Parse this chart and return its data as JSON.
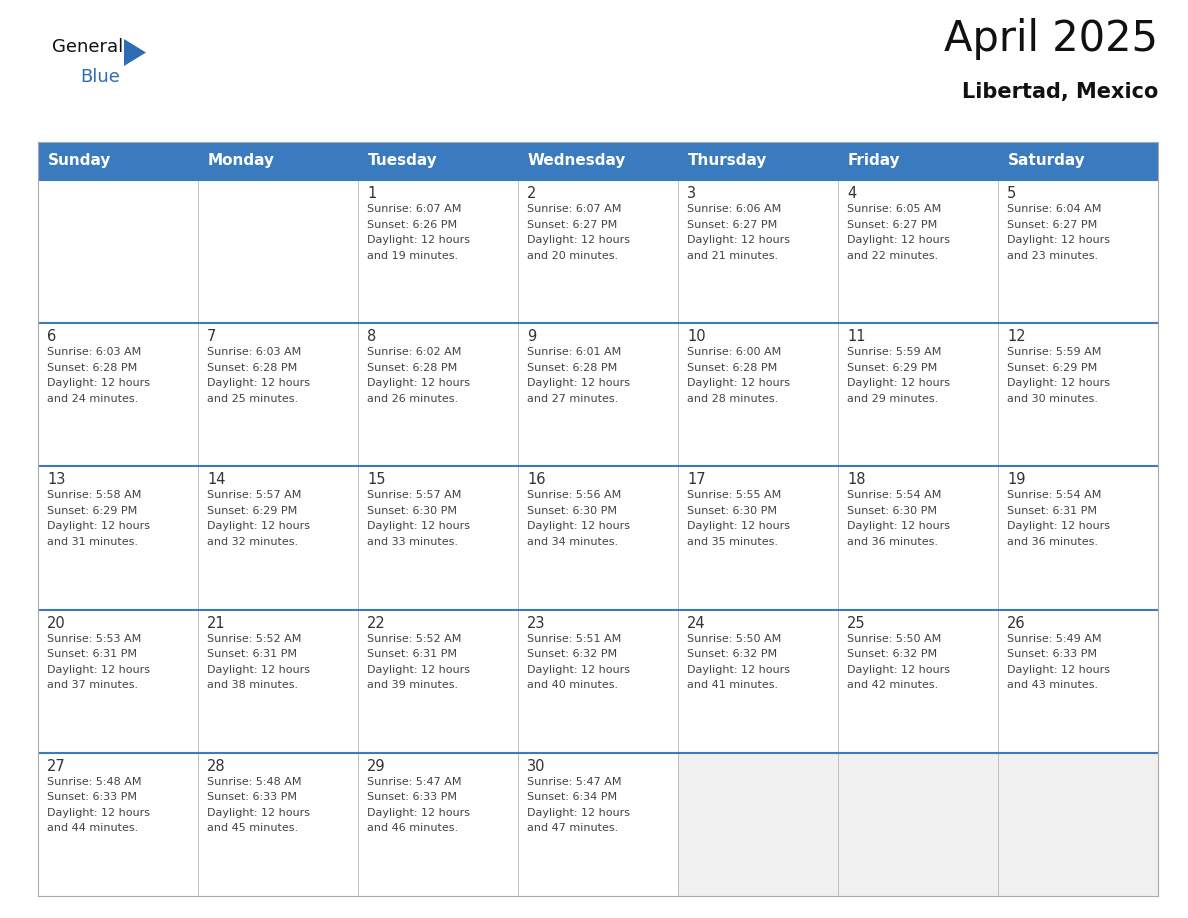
{
  "title": "April 2025",
  "subtitle": "Libertad, Mexico",
  "header_bg": "#3a7bbf",
  "header_text": "#FFFFFF",
  "weekdays": [
    "Sunday",
    "Monday",
    "Tuesday",
    "Wednesday",
    "Thursday",
    "Friday",
    "Saturday"
  ],
  "cell_bg": "#FFFFFF",
  "cell_bg_empty_last": "#F0F0F0",
  "divider_color": "#3a7bbf",
  "grid_line_color": "#AAAAAA",
  "text_color": "#444444",
  "day_number_color": "#333333",
  "title_color": "#111111",
  "logo_general_color": "#111111",
  "logo_blue_color": "#2E6DB4",
  "logo_triangle_color": "#2E6DB4",
  "calendar": [
    [
      {
        "day": "",
        "sunrise": "",
        "sunset": "",
        "daylight": ""
      },
      {
        "day": "",
        "sunrise": "",
        "sunset": "",
        "daylight": ""
      },
      {
        "day": "1",
        "sunrise": "6:07 AM",
        "sunset": "6:26 PM",
        "daylight": "12 hours and 19 minutes."
      },
      {
        "day": "2",
        "sunrise": "6:07 AM",
        "sunset": "6:27 PM",
        "daylight": "12 hours and 20 minutes."
      },
      {
        "day": "3",
        "sunrise": "6:06 AM",
        "sunset": "6:27 PM",
        "daylight": "12 hours and 21 minutes."
      },
      {
        "day": "4",
        "sunrise": "6:05 AM",
        "sunset": "6:27 PM",
        "daylight": "12 hours and 22 minutes."
      },
      {
        "day": "5",
        "sunrise": "6:04 AM",
        "sunset": "6:27 PM",
        "daylight": "12 hours and 23 minutes."
      }
    ],
    [
      {
        "day": "6",
        "sunrise": "6:03 AM",
        "sunset": "6:28 PM",
        "daylight": "12 hours and 24 minutes."
      },
      {
        "day": "7",
        "sunrise": "6:03 AM",
        "sunset": "6:28 PM",
        "daylight": "12 hours and 25 minutes."
      },
      {
        "day": "8",
        "sunrise": "6:02 AM",
        "sunset": "6:28 PM",
        "daylight": "12 hours and 26 minutes."
      },
      {
        "day": "9",
        "sunrise": "6:01 AM",
        "sunset": "6:28 PM",
        "daylight": "12 hours and 27 minutes."
      },
      {
        "day": "10",
        "sunrise": "6:00 AM",
        "sunset": "6:28 PM",
        "daylight": "12 hours and 28 minutes."
      },
      {
        "day": "11",
        "sunrise": "5:59 AM",
        "sunset": "6:29 PM",
        "daylight": "12 hours and 29 minutes."
      },
      {
        "day": "12",
        "sunrise": "5:59 AM",
        "sunset": "6:29 PM",
        "daylight": "12 hours and 30 minutes."
      }
    ],
    [
      {
        "day": "13",
        "sunrise": "5:58 AM",
        "sunset": "6:29 PM",
        "daylight": "12 hours and 31 minutes."
      },
      {
        "day": "14",
        "sunrise": "5:57 AM",
        "sunset": "6:29 PM",
        "daylight": "12 hours and 32 minutes."
      },
      {
        "day": "15",
        "sunrise": "5:57 AM",
        "sunset": "6:30 PM",
        "daylight": "12 hours and 33 minutes."
      },
      {
        "day": "16",
        "sunrise": "5:56 AM",
        "sunset": "6:30 PM",
        "daylight": "12 hours and 34 minutes."
      },
      {
        "day": "17",
        "sunrise": "5:55 AM",
        "sunset": "6:30 PM",
        "daylight": "12 hours and 35 minutes."
      },
      {
        "day": "18",
        "sunrise": "5:54 AM",
        "sunset": "6:30 PM",
        "daylight": "12 hours and 36 minutes."
      },
      {
        "day": "19",
        "sunrise": "5:54 AM",
        "sunset": "6:31 PM",
        "daylight": "12 hours and 36 minutes."
      }
    ],
    [
      {
        "day": "20",
        "sunrise": "5:53 AM",
        "sunset": "6:31 PM",
        "daylight": "12 hours and 37 minutes."
      },
      {
        "day": "21",
        "sunrise": "5:52 AM",
        "sunset": "6:31 PM",
        "daylight": "12 hours and 38 minutes."
      },
      {
        "day": "22",
        "sunrise": "5:52 AM",
        "sunset": "6:31 PM",
        "daylight": "12 hours and 39 minutes."
      },
      {
        "day": "23",
        "sunrise": "5:51 AM",
        "sunset": "6:32 PM",
        "daylight": "12 hours and 40 minutes."
      },
      {
        "day": "24",
        "sunrise": "5:50 AM",
        "sunset": "6:32 PM",
        "daylight": "12 hours and 41 minutes."
      },
      {
        "day": "25",
        "sunrise": "5:50 AM",
        "sunset": "6:32 PM",
        "daylight": "12 hours and 42 minutes."
      },
      {
        "day": "26",
        "sunrise": "5:49 AM",
        "sunset": "6:33 PM",
        "daylight": "12 hours and 43 minutes."
      }
    ],
    [
      {
        "day": "27",
        "sunrise": "5:48 AM",
        "sunset": "6:33 PM",
        "daylight": "12 hours and 44 minutes."
      },
      {
        "day": "28",
        "sunrise": "5:48 AM",
        "sunset": "6:33 PM",
        "daylight": "12 hours and 45 minutes."
      },
      {
        "day": "29",
        "sunrise": "5:47 AM",
        "sunset": "6:33 PM",
        "daylight": "12 hours and 46 minutes."
      },
      {
        "day": "30",
        "sunrise": "5:47 AM",
        "sunset": "6:34 PM",
        "daylight": "12 hours and 47 minutes."
      },
      {
        "day": "",
        "sunrise": "",
        "sunset": "",
        "daylight": ""
      },
      {
        "day": "",
        "sunrise": "",
        "sunset": "",
        "daylight": ""
      },
      {
        "day": "",
        "sunrise": "",
        "sunset": "",
        "daylight": ""
      }
    ]
  ]
}
